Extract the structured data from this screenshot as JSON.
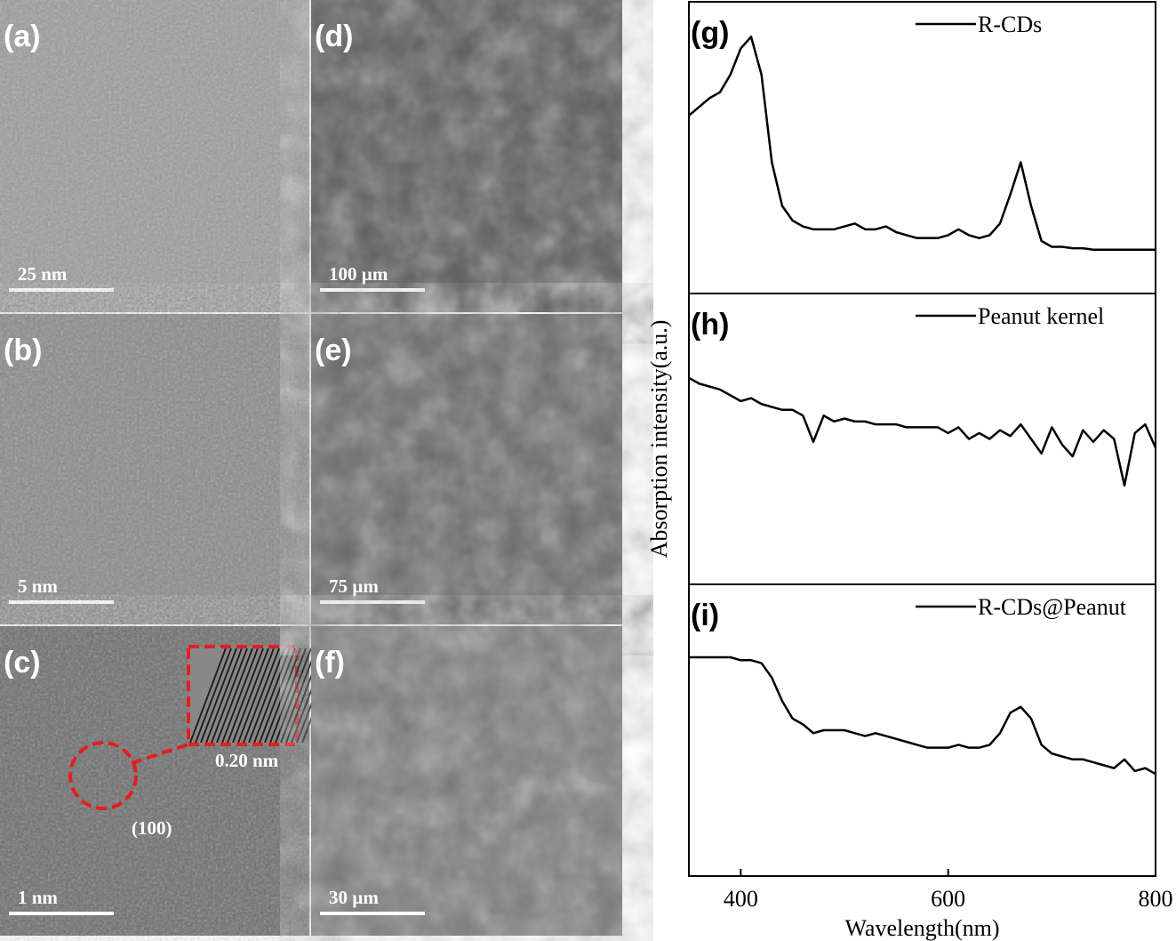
{
  "images": [
    {
      "label": "(a)",
      "scale_bar": "25 nm"
    },
    {
      "label": "(b)",
      "scale_bar": "5 nm"
    },
    {
      "label": "(c)",
      "scale_bar": "1 nm",
      "annotations": [
        "0.20 nm",
        "(100)"
      ]
    },
    {
      "label": "(d)",
      "scale_bar": "100 µm"
    },
    {
      "label": "(e)",
      "scale_bar": "75 µm"
    },
    {
      "label": "(f)",
      "scale_bar": "30 µm"
    }
  ],
  "chart_data": [
    {
      "type": "line",
      "panel_label": "(g)",
      "legend": "upper right",
      "x": [
        350,
        360,
        370,
        380,
        390,
        400,
        410,
        420,
        430,
        440,
        450,
        460,
        470,
        480,
        490,
        500,
        510,
        520,
        530,
        540,
        550,
        560,
        570,
        580,
        590,
        600,
        610,
        620,
        630,
        640,
        650,
        660,
        670,
        680,
        690,
        700,
        710,
        720,
        730,
        740,
        750,
        760,
        770,
        780,
        790,
        800
      ],
      "xlim": [
        350,
        800
      ],
      "ylim": [
        0,
        1
      ],
      "series": [
        {
          "name": "R-CDs",
          "color": "#000000",
          "values": [
            0.61,
            0.64,
            0.67,
            0.69,
            0.75,
            0.84,
            0.88,
            0.75,
            0.45,
            0.3,
            0.25,
            0.23,
            0.22,
            0.22,
            0.22,
            0.23,
            0.24,
            0.22,
            0.22,
            0.23,
            0.21,
            0.2,
            0.19,
            0.19,
            0.19,
            0.2,
            0.22,
            0.2,
            0.19,
            0.2,
            0.24,
            0.34,
            0.45,
            0.3,
            0.18,
            0.16,
            0.16,
            0.155,
            0.155,
            0.15,
            0.15,
            0.15,
            0.15,
            0.15,
            0.15,
            0.15
          ]
        }
      ]
    },
    {
      "type": "line",
      "panel_label": "(h)",
      "legend": "upper right",
      "ylabel": "Absorption intensity(a.u.)",
      "x": [
        350,
        360,
        370,
        380,
        390,
        400,
        410,
        420,
        430,
        440,
        450,
        460,
        470,
        480,
        490,
        500,
        510,
        520,
        530,
        540,
        550,
        560,
        570,
        580,
        590,
        600,
        610,
        620,
        630,
        640,
        650,
        660,
        670,
        680,
        690,
        700,
        710,
        720,
        730,
        740,
        750,
        760,
        770,
        780,
        790,
        800
      ],
      "xlim": [
        350,
        800
      ],
      "ylim": [
        0,
        1
      ],
      "series": [
        {
          "name": "Peanut kernel",
          "color": "#000000",
          "values": [
            0.71,
            0.69,
            0.68,
            0.67,
            0.65,
            0.63,
            0.64,
            0.62,
            0.61,
            0.6,
            0.6,
            0.58,
            0.49,
            0.58,
            0.56,
            0.57,
            0.56,
            0.56,
            0.55,
            0.55,
            0.55,
            0.54,
            0.54,
            0.54,
            0.54,
            0.52,
            0.54,
            0.5,
            0.52,
            0.5,
            0.53,
            0.51,
            0.55,
            0.5,
            0.45,
            0.54,
            0.48,
            0.44,
            0.53,
            0.49,
            0.53,
            0.5,
            0.34,
            0.52,
            0.55,
            0.47
          ]
        }
      ]
    },
    {
      "type": "line",
      "panel_label": "(i)",
      "legend": "upper right",
      "xlabel": "Wavelength(nm)",
      "x": [
        350,
        360,
        370,
        380,
        390,
        400,
        410,
        420,
        430,
        440,
        450,
        460,
        470,
        480,
        490,
        500,
        510,
        520,
        530,
        540,
        550,
        560,
        570,
        580,
        590,
        600,
        610,
        620,
        630,
        640,
        650,
        660,
        670,
        680,
        690,
        700,
        710,
        720,
        730,
        740,
        750,
        760,
        770,
        780,
        790,
        800
      ],
      "xlim": [
        350,
        800
      ],
      "ylim": [
        0,
        1
      ],
      "xticks": [
        400,
        600,
        800
      ],
      "series": [
        {
          "name": "R-CDs@Peanut",
          "color": "#000000",
          "values": [
            0.75,
            0.75,
            0.75,
            0.75,
            0.75,
            0.74,
            0.74,
            0.73,
            0.68,
            0.6,
            0.54,
            0.52,
            0.49,
            0.5,
            0.5,
            0.5,
            0.49,
            0.48,
            0.49,
            0.48,
            0.47,
            0.46,
            0.45,
            0.44,
            0.44,
            0.44,
            0.45,
            0.44,
            0.44,
            0.45,
            0.49,
            0.56,
            0.58,
            0.54,
            0.45,
            0.42,
            0.41,
            0.4,
            0.4,
            0.39,
            0.38,
            0.37,
            0.4,
            0.36,
            0.37,
            0.35
          ]
        }
      ]
    }
  ]
}
